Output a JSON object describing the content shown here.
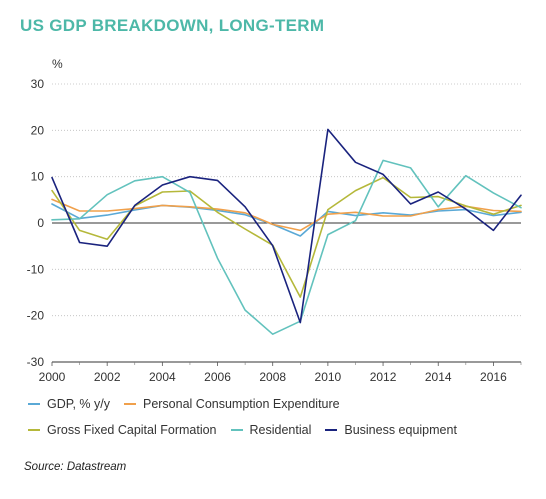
{
  "colors": {
    "title": "#4db8a8",
    "gdp": "#5aa9d6",
    "pce": "#f0a04b",
    "gfcf": "#b5b83a",
    "residential": "#62c2bd",
    "business": "#1a237e",
    "grid": "#bdbdbd",
    "zero": "#333333"
  },
  "chart_data": {
    "type": "line",
    "title": "US GDP BREAKDOWN, LONG-TERM",
    "ylabel": "%",
    "xlim": [
      2000,
      2017
    ],
    "ylim": [
      -30,
      30
    ],
    "x_ticks": [
      2000,
      2002,
      2004,
      2006,
      2008,
      2010,
      2012,
      2014,
      2016
    ],
    "y_ticks": [
      30,
      20,
      10,
      0,
      -10,
      -20,
      -30
    ],
    "y_tick_labels": [
      "30",
      "20",
      "10",
      "0",
      "-10",
      "-20",
      "-30"
    ],
    "grid": "horizontal",
    "legend_position": "bottom",
    "x": [
      2000,
      2001,
      2002,
      2003,
      2004,
      2005,
      2006,
      2007,
      2008,
      2009,
      2010,
      2011,
      2012,
      2013,
      2014,
      2015,
      2016,
      2017
    ],
    "series": [
      {
        "name": "GDP, % y/y",
        "color_key": "gdp",
        "values": [
          4.1,
          1.0,
          1.7,
          2.8,
          3.8,
          3.4,
          2.7,
          1.8,
          -0.3,
          -2.8,
          2.5,
          1.6,
          2.2,
          1.7,
          2.6,
          2.9,
          1.6,
          2.3
        ]
      },
      {
        "name": "Personal Consumption Expenditure",
        "color_key": "pce",
        "values": [
          5.1,
          2.6,
          2.6,
          3.1,
          3.8,
          3.5,
          3.0,
          2.2,
          -0.3,
          -1.6,
          1.9,
          2.3,
          1.5,
          1.5,
          2.9,
          3.6,
          2.7,
          2.5
        ]
      },
      {
        "name": "Gross Fixed Capital Formation",
        "color_key": "gfcf",
        "values": [
          7.0,
          -1.6,
          -3.5,
          3.7,
          6.7,
          6.9,
          2.3,
          -1.3,
          -4.8,
          -16.0,
          2.9,
          7.0,
          9.8,
          5.5,
          5.7,
          3.7,
          1.9,
          3.8
        ]
      },
      {
        "name": "Residential",
        "color_key": "residential",
        "values": [
          0.7,
          0.9,
          6.1,
          9.1,
          10.0,
          6.6,
          -7.6,
          -18.8,
          -24.0,
          -21.2,
          -2.5,
          0.5,
          13.5,
          11.9,
          3.5,
          10.2,
          6.5,
          3.3
        ]
      },
      {
        "name": "Business equipment",
        "color_key": "business",
        "values": [
          9.8,
          -4.2,
          -5.0,
          3.8,
          8.2,
          10.0,
          9.2,
          3.5,
          -4.9,
          -21.5,
          20.2,
          13.1,
          10.5,
          4.1,
          6.7,
          3.0,
          -1.6,
          6.0
        ]
      }
    ]
  },
  "legend": {
    "rows": [
      [
        {
          "label": "GDP, % y/y",
          "color_key": "gdp"
        },
        {
          "label": "Personal Consumption Expenditure",
          "color_key": "pce"
        }
      ],
      [
        {
          "label": "Gross Fixed Capital Formation",
          "color_key": "gfcf"
        },
        {
          "label": "Residential",
          "color_key": "residential"
        },
        {
          "label": "Business equipment",
          "color_key": "business"
        }
      ]
    ]
  },
  "source": "Source: Datastream"
}
